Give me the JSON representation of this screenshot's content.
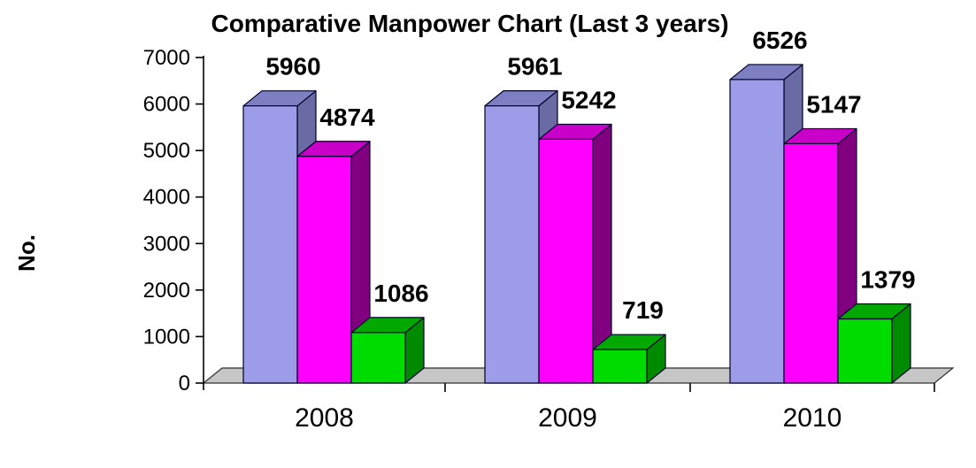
{
  "chart_data": {
    "type": "bar",
    "style": "3d-clustered",
    "title": "Comparative Manpower Chart (Last 3 years)",
    "ylabel": "No.",
    "xlabel": "",
    "categories": [
      "2008",
      "2009",
      "2010"
    ],
    "series": [
      {
        "name": "",
        "color": "#9C9CE8",
        "top_color": "#7E7EC2",
        "side_color": "#6A6AA4",
        "values": [
          5960,
          5961,
          6526
        ]
      },
      {
        "name": "",
        "color": "#FF00FF",
        "top_color": "#C800C8",
        "side_color": "#800080",
        "values": [
          4874,
          5242,
          5147
        ]
      },
      {
        "name": "",
        "color": "#00DC00",
        "top_color": "#00A800",
        "side_color": "#008A00",
        "values": [
          1086,
          719,
          1379
        ]
      }
    ],
    "data_labels_visible": true,
    "ylim": [
      0,
      7000
    ],
    "yticks": [
      0,
      1000,
      2000,
      3000,
      4000,
      5000,
      6000,
      7000
    ],
    "grid": false,
    "legend": "none",
    "background_color": "#FFFFFF",
    "floor_color": "#C6C6C6",
    "axis_color": "#000000",
    "text_color": "#000000",
    "outline_color": "#000028"
  }
}
